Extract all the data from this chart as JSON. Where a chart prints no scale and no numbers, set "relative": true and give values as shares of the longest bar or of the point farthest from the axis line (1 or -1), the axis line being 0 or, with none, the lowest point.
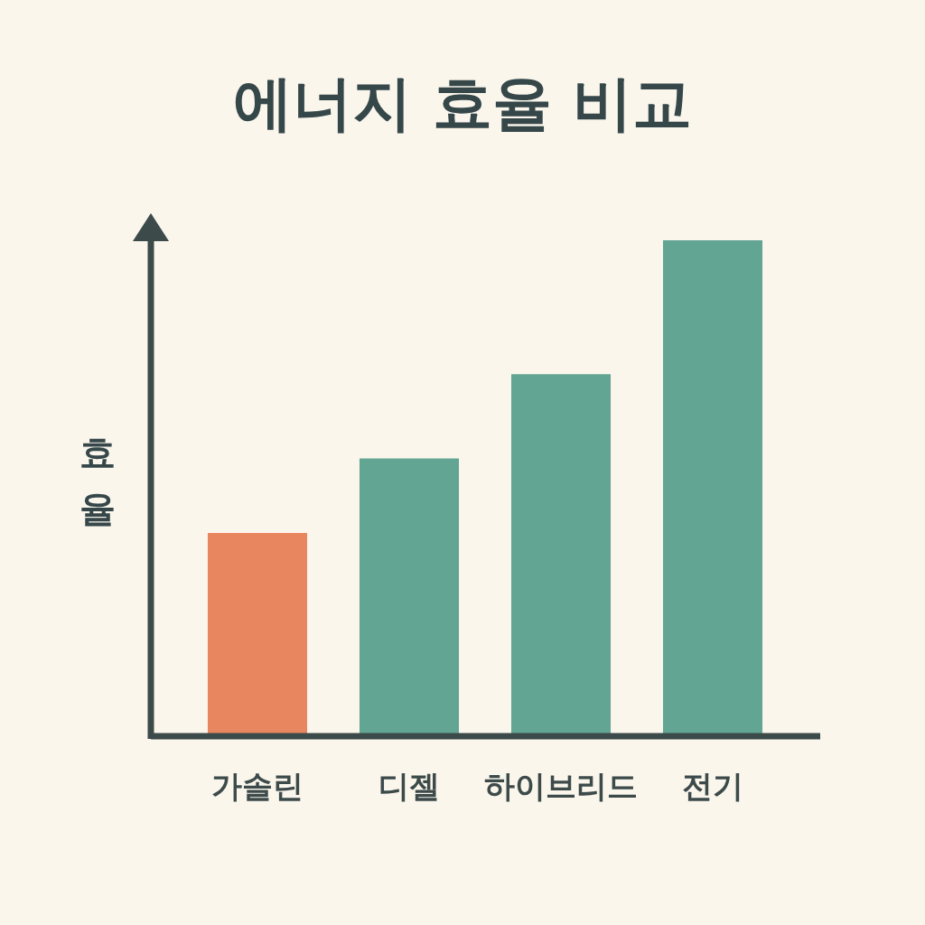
{
  "chart_data": {
    "type": "bar",
    "title": "에너지 효율 비교",
    "ylabel": "효율",
    "relative": true,
    "categories": [
      "가솔린",
      "디젤",
      "하이브리드",
      "전기"
    ],
    "values": [
      0.41,
      0.56,
      0.73,
      1
    ],
    "colors": [
      "#e8865f",
      "#62a592",
      "#62a592",
      "#62a592"
    ]
  }
}
